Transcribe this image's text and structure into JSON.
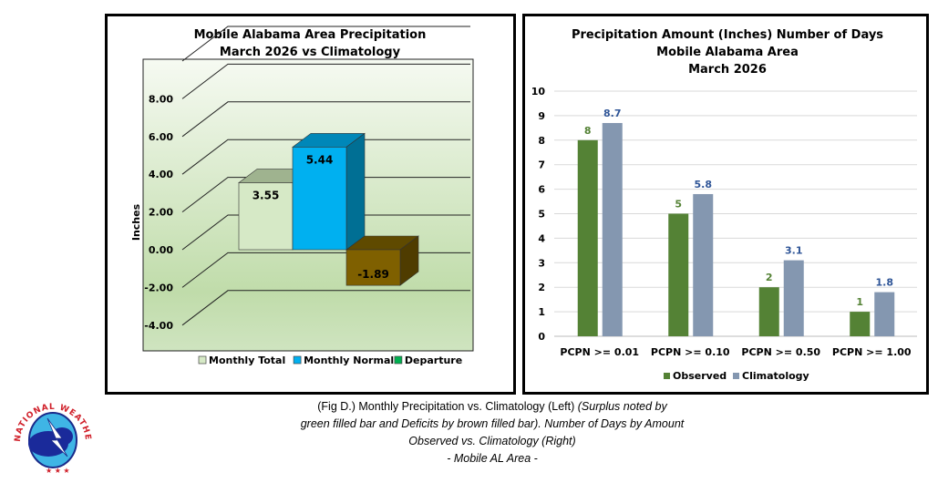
{
  "chart_data": [
    {
      "type": "bar",
      "style": "3d-clustered-column",
      "title": [
        "Mobile Alabama Area Precipitation",
        "March 2026 vs Climatology"
      ],
      "ylabel": "Inches",
      "ylim": [
        -4,
        8
      ],
      "yticks": [
        "8.00",
        "6.00",
        "4.00",
        "2.00",
        "0.00",
        "-2.00",
        "-4.00"
      ],
      "series": [
        {
          "name": "Monthly Total",
          "value": 3.55,
          "label": "3.55",
          "color": "#d6e9c6"
        },
        {
          "name": "Monthly Normal",
          "value": 5.44,
          "label": "5.44",
          "color": "#00b0f0"
        },
        {
          "name": "Departure",
          "value": -1.89,
          "label": "-1.89",
          "color": "#7f6000",
          "legend_color": "#00b050"
        }
      ],
      "legend": "bottom"
    },
    {
      "type": "bar",
      "title": [
        "Precipitation Amount (Inches) Number of Days",
        "Mobile Alabama Area",
        "March 2026"
      ],
      "categories": [
        "PCPN >= 0.01",
        "PCPN >= 0.10",
        "PCPN >= 0.50",
        "PCPN >= 1.00"
      ],
      "ylim": [
        0,
        10
      ],
      "yticks": [
        "0",
        "1",
        "2",
        "3",
        "4",
        "5",
        "6",
        "7",
        "8",
        "9",
        "10"
      ],
      "grid": true,
      "series": [
        {
          "name": "Observed",
          "values": [
            8,
            5,
            2,
            1
          ],
          "labels": [
            "8",
            "5",
            "2",
            "1"
          ],
          "color": "#548235"
        },
        {
          "name": "Climatology",
          "values": [
            8.7,
            5.8,
            3.1,
            1.8
          ],
          "labels": [
            "8.7",
            "5.8",
            "3.1",
            "1.8"
          ],
          "color": "#8497b0",
          "label_color": "#2f5597"
        }
      ],
      "legend": "bottom"
    }
  ],
  "caption": {
    "line1_plain": "(Fig D.) Monthly Precipitation vs. Climatology (Left) ",
    "line1_italic": "(Surplus noted by",
    "line2": "green filled bar and Deficits by brown filled bar). Number of Days by Amount",
    "line3": "Observed vs. Climatology (Right)",
    "line4": "- Mobile AL Area -"
  },
  "logo": {
    "text": "NATIONAL WEATHER SERVICE"
  }
}
